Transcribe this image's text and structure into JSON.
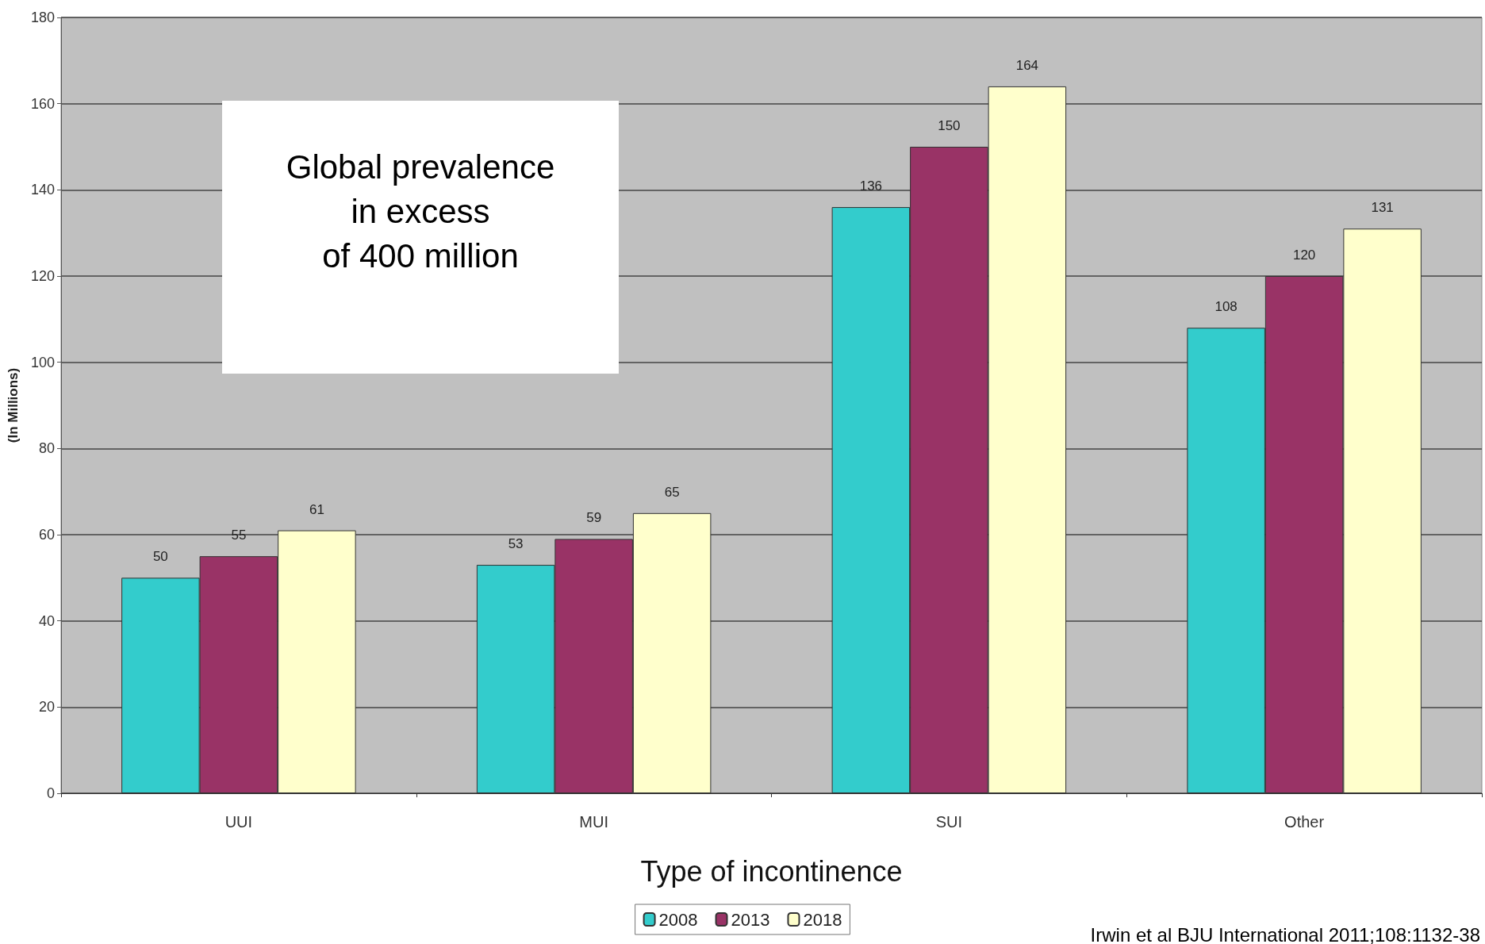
{
  "chart_data": {
    "type": "bar",
    "ylabel": "(In Millions)",
    "xlabel": "Type of incontinence",
    "categories": [
      "UUI",
      "MUI",
      "SUI",
      "Other"
    ],
    "series": [
      {
        "name": "2008",
        "color": "#33cccc",
        "values": [
          50,
          53,
          136,
          108
        ]
      },
      {
        "name": "2013",
        "color": "#993366",
        "values": [
          55,
          59,
          150,
          120
        ]
      },
      {
        "name": "2018",
        "color": "#ffffcc",
        "values": [
          61,
          65,
          164,
          131
        ]
      }
    ],
    "ylim": [
      0,
      180
    ],
    "yticks": [
      0,
      20,
      40,
      60,
      80,
      100,
      120,
      140,
      160,
      180
    ],
    "grid": "y",
    "legend": "bottom",
    "data_labels": true,
    "annotations": [
      "Global prevalence\nin excess\nof 400 million",
      "Irwin et al BJU International 2011;108:1132-38"
    ]
  }
}
